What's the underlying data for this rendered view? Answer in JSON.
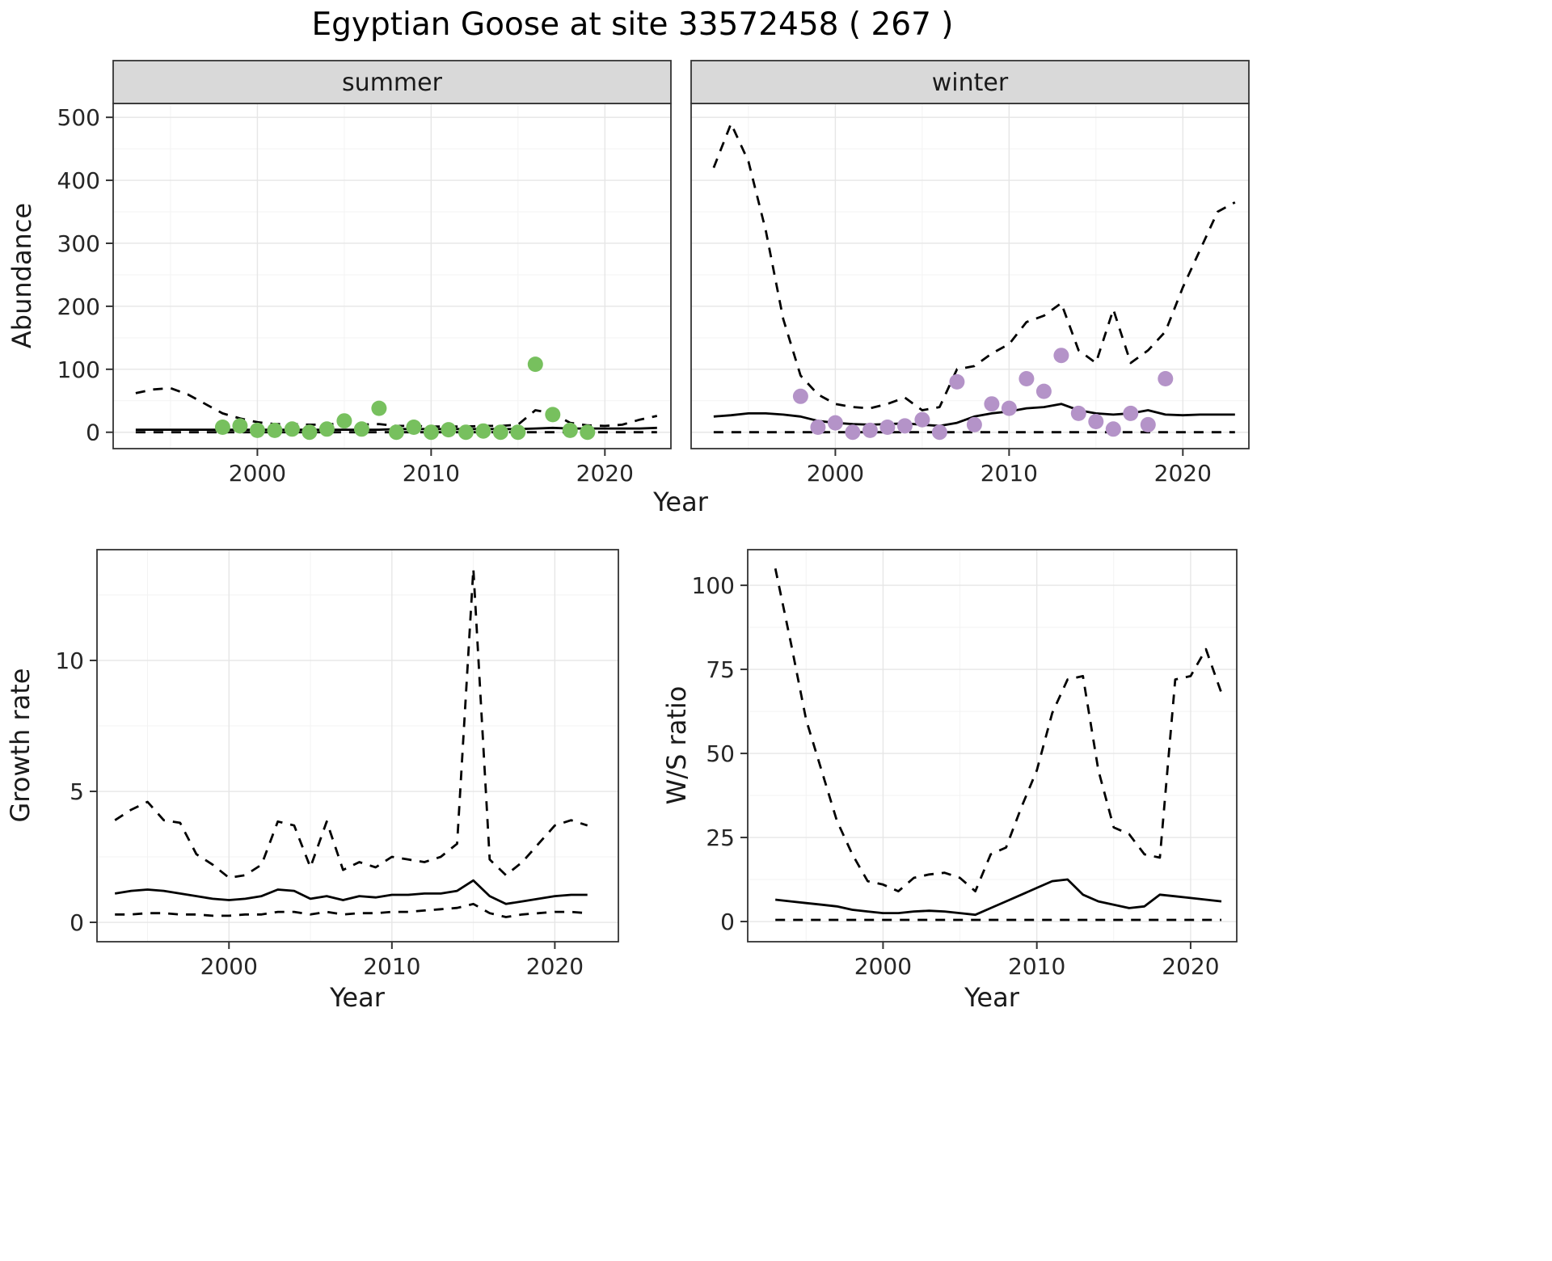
{
  "title": "Egyptian Goose at site 33572458 ( 267 )",
  "shared": {
    "x_axis_label": "Year",
    "colors": {
      "summer_points": "#77c05e",
      "winter_points": "#b493c8",
      "line": "#000000",
      "strip_bg": "#d9d9d9",
      "panel_border": "#333333",
      "grid_major": "#e6e6e6",
      "grid_minor": "#f3f3f3",
      "tick": "#333333",
      "tick_text": "#262626"
    }
  },
  "chart_data": [
    {
      "id": "abundance_summer",
      "type": "line+scatter",
      "facet_label": "summer",
      "xlabel": "Year",
      "ylabel": "Abundance",
      "xlim": [
        1991.7,
        2023.8
      ],
      "ylim": [
        -26,
        522
      ],
      "yticks": [
        0,
        100,
        200,
        300,
        400,
        500
      ],
      "yticks_minor": [
        50,
        150,
        250,
        350,
        450
      ],
      "xticks": [
        2000,
        2010,
        2020
      ],
      "xticks_minor": [
        1995,
        2005,
        2015
      ],
      "series": [
        {
          "name": "lower_ci",
          "style": "dashed",
          "x": [
            1993,
            1994,
            1995,
            1996,
            1997,
            1998,
            1999,
            2000,
            2001,
            2002,
            2003,
            2004,
            2005,
            2006,
            2007,
            2008,
            2009,
            2010,
            2011,
            2012,
            2013,
            2014,
            2015,
            2016,
            2017,
            2018,
            2019,
            2020,
            2021,
            2022,
            2023
          ],
          "y": [
            0,
            0,
            0,
            0,
            0,
            0,
            0,
            0,
            0,
            0,
            0,
            0,
            0,
            0,
            0,
            0,
            0,
            0,
            0,
            0,
            0,
            0,
            0,
            0,
            0,
            0,
            0,
            0,
            0,
            0,
            0
          ]
        },
        {
          "name": "upper_ci",
          "style": "dashed",
          "x": [
            1993,
            1994,
            1995,
            1996,
            1997,
            1998,
            1999,
            2000,
            2001,
            2002,
            2003,
            2004,
            2005,
            2006,
            2007,
            2008,
            2009,
            2010,
            2011,
            2012,
            2013,
            2014,
            2015,
            2016,
            2017,
            2018,
            2019,
            2020,
            2021,
            2022,
            2023
          ],
          "y": [
            62,
            68,
            70,
            60,
            45,
            30,
            22,
            16,
            13,
            13,
            12,
            12,
            15,
            12,
            13,
            10,
            10,
            9,
            9,
            9,
            10,
            10,
            12,
            35,
            30,
            15,
            11,
            10,
            12,
            20,
            26
          ]
        },
        {
          "name": "fit",
          "style": "solid",
          "x": [
            1993,
            1994,
            1995,
            1996,
            1997,
            1998,
            1999,
            2000,
            2001,
            2002,
            2003,
            2004,
            2005,
            2006,
            2007,
            2008,
            2009,
            2010,
            2011,
            2012,
            2013,
            2014,
            2015,
            2016,
            2017,
            2018,
            2019,
            2020,
            2021,
            2022,
            2023
          ],
          "y": [
            4,
            4,
            4,
            4,
            4,
            4,
            4,
            4,
            4,
            4,
            4,
            4,
            4,
            4,
            4,
            5,
            5,
            5,
            5,
            5,
            5,
            5,
            5,
            6,
            7,
            6,
            6,
            6,
            6,
            6,
            7
          ]
        },
        {
          "name": "observed",
          "style": "points",
          "color_key": "summer_points",
          "x": [
            1998,
            1999,
            2000,
            2001,
            2002,
            2003,
            2004,
            2005,
            2006,
            2007,
            2008,
            2009,
            2010,
            2011,
            2012,
            2013,
            2014,
            2015,
            2016,
            2017,
            2018,
            2019
          ],
          "y": [
            8,
            10,
            3,
            3,
            5,
            0,
            5,
            18,
            5,
            38,
            0,
            8,
            0,
            4,
            0,
            2,
            0,
            0,
            108,
            28,
            3,
            0
          ]
        }
      ]
    },
    {
      "id": "abundance_winter",
      "type": "line+scatter",
      "facet_label": "winter",
      "xlabel": "Year",
      "ylabel": "Abundance",
      "xlim": [
        1991.7,
        2023.8
      ],
      "ylim": [
        -26,
        522
      ],
      "yticks": [
        0,
        100,
        200,
        300,
        400,
        500
      ],
      "yticks_minor": [
        50,
        150,
        250,
        350,
        450
      ],
      "xticks": [
        2000,
        2010,
        2020
      ],
      "xticks_minor": [
        1995,
        2005,
        2015
      ],
      "series": [
        {
          "name": "lower_ci",
          "style": "dashed",
          "x": [
            1993,
            1994,
            1995,
            1996,
            1997,
            1998,
            1999,
            2000,
            2001,
            2002,
            2003,
            2004,
            2005,
            2006,
            2007,
            2008,
            2009,
            2010,
            2011,
            2012,
            2013,
            2014,
            2015,
            2016,
            2017,
            2018,
            2019,
            2020,
            2021,
            2022,
            2023
          ],
          "y": [
            0,
            0,
            0,
            0,
            0,
            0,
            0,
            0,
            0,
            0,
            0,
            0,
            0,
            0,
            0,
            0,
            0,
            0,
            0,
            0,
            0,
            0,
            0,
            0,
            0,
            0,
            0,
            0,
            0,
            0,
            0
          ]
        },
        {
          "name": "upper_ci",
          "style": "dashed",
          "x": [
            1993,
            1994,
            1995,
            1996,
            1997,
            1998,
            1999,
            2000,
            2001,
            2002,
            2003,
            2004,
            2005,
            2006,
            2007,
            2008,
            2009,
            2010,
            2011,
            2012,
            2013,
            2014,
            2015,
            2016,
            2017,
            2018,
            2019,
            2020,
            2021,
            2022,
            2023
          ],
          "y": [
            420,
            490,
            430,
            320,
            180,
            90,
            60,
            45,
            40,
            38,
            45,
            55,
            35,
            40,
            100,
            105,
            125,
            140,
            175,
            185,
            205,
            130,
            110,
            195,
            110,
            130,
            160,
            230,
            290,
            350,
            365
          ]
        },
        {
          "name": "fit",
          "style": "solid",
          "x": [
            1993,
            1994,
            1995,
            1996,
            1997,
            1998,
            1999,
            2000,
            2001,
            2002,
            2003,
            2004,
            2005,
            2006,
            2007,
            2008,
            2009,
            2010,
            2011,
            2012,
            2013,
            2014,
            2015,
            2016,
            2017,
            2018,
            2019,
            2020,
            2021,
            2022,
            2023
          ],
          "y": [
            25,
            27,
            30,
            30,
            28,
            25,
            18,
            15,
            13,
            12,
            13,
            14,
            12,
            10,
            15,
            25,
            30,
            33,
            38,
            40,
            45,
            35,
            30,
            28,
            30,
            35,
            28,
            27,
            28,
            28,
            28
          ]
        },
        {
          "name": "observed",
          "style": "points",
          "color_key": "winter_points",
          "x": [
            1998,
            1999,
            2000,
            2001,
            2002,
            2003,
            2004,
            2005,
            2006,
            2007,
            2008,
            2009,
            2010,
            2011,
            2012,
            2013,
            2014,
            2015,
            2016,
            2017,
            2018,
            2019
          ],
          "y": [
            57,
            8,
            15,
            0,
            3,
            8,
            10,
            20,
            0,
            80,
            12,
            45,
            38,
            85,
            65,
            122,
            30,
            17,
            5,
            30,
            12,
            85
          ]
        }
      ]
    },
    {
      "id": "growth_rate",
      "type": "line",
      "facet_label": "",
      "xlabel": "Year",
      "ylabel": "Growth rate",
      "xlim": [
        1991.9,
        2023.9
      ],
      "ylim": [
        -0.74,
        14.23
      ],
      "yticks": [
        0,
        5,
        10
      ],
      "yticks_minor": [
        2.5,
        7.5,
        12.5
      ],
      "xticks": [
        2000,
        2010,
        2020
      ],
      "xticks_minor": [
        1995,
        2005,
        2015
      ],
      "series": [
        {
          "name": "lower_ci",
          "style": "dashed",
          "x": [
            1993,
            1994,
            1995,
            1996,
            1997,
            1998,
            1999,
            2000,
            2001,
            2002,
            2003,
            2004,
            2005,
            2006,
            2007,
            2008,
            2009,
            2010,
            2011,
            2012,
            2013,
            2014,
            2015,
            2016,
            2017,
            2018,
            2019,
            2020,
            2021,
            2022
          ],
          "y": [
            0.3,
            0.3,
            0.35,
            0.35,
            0.3,
            0.3,
            0.25,
            0.25,
            0.3,
            0.3,
            0.4,
            0.4,
            0.3,
            0.4,
            0.3,
            0.35,
            0.35,
            0.4,
            0.4,
            0.45,
            0.5,
            0.55,
            0.7,
            0.35,
            0.2,
            0.3,
            0.35,
            0.4,
            0.4,
            0.35
          ]
        },
        {
          "name": "upper_ci",
          "style": "dashed",
          "x": [
            1993,
            1994,
            1995,
            1996,
            1997,
            1998,
            1999,
            2000,
            2001,
            2002,
            2003,
            2004,
            2005,
            2006,
            2007,
            2008,
            2009,
            2010,
            2011,
            2012,
            2013,
            2014,
            2015,
            2016,
            2017,
            2018,
            2019,
            2020,
            2021,
            2022
          ],
          "y": [
            3.9,
            4.3,
            4.6,
            3.9,
            3.8,
            2.6,
            2.2,
            1.7,
            1.8,
            2.2,
            3.85,
            3.7,
            2.1,
            3.85,
            2.0,
            2.3,
            2.1,
            2.5,
            2.4,
            2.3,
            2.5,
            3.0,
            13.5,
            2.4,
            1.8,
            2.3,
            3.0,
            3.7,
            3.9,
            3.7
          ]
        },
        {
          "name": "fit",
          "style": "solid",
          "x": [
            1993,
            1994,
            1995,
            1996,
            1997,
            1998,
            1999,
            2000,
            2001,
            2002,
            2003,
            2004,
            2005,
            2006,
            2007,
            2008,
            2009,
            2010,
            2011,
            2012,
            2013,
            2014,
            2015,
            2016,
            2017,
            2018,
            2019,
            2020,
            2021,
            2022
          ],
          "y": [
            1.1,
            1.2,
            1.25,
            1.2,
            1.1,
            1.0,
            0.9,
            0.85,
            0.9,
            1.0,
            1.25,
            1.2,
            0.9,
            1.0,
            0.85,
            1.0,
            0.95,
            1.05,
            1.05,
            1.1,
            1.1,
            1.2,
            1.6,
            1.0,
            0.7,
            0.8,
            0.9,
            1.0,
            1.05,
            1.05
          ]
        }
      ]
    },
    {
      "id": "ws_ratio",
      "type": "line",
      "facet_label": "",
      "xlabel": "Year",
      "ylabel": "W/S ratio",
      "xlim": [
        1991.2,
        2023.0
      ],
      "ylim": [
        -6,
        110.6
      ],
      "yticks": [
        0,
        25,
        50,
        75,
        100
      ],
      "yticks_minor": [
        12.5,
        37.5,
        62.5,
        87.5
      ],
      "xticks": [
        2000,
        2010,
        2020
      ],
      "xticks_minor": [
        1995,
        2005,
        2015
      ],
      "series": [
        {
          "name": "lower_ci",
          "style": "dashed",
          "x": [
            1993,
            1994,
            1995,
            1996,
            1997,
            1998,
            1999,
            2000,
            2001,
            2002,
            2003,
            2004,
            2005,
            2006,
            2007,
            2008,
            2009,
            2010,
            2011,
            2012,
            2013,
            2014,
            2015,
            2016,
            2017,
            2018,
            2019,
            2020,
            2021,
            2022
          ],
          "y": [
            0.5,
            0.5,
            0.5,
            0.5,
            0.5,
            0.5,
            0.5,
            0.5,
            0.5,
            0.5,
            0.5,
            0.5,
            0.5,
            0.5,
            0.5,
            0.5,
            0.5,
            0.5,
            0.5,
            0.5,
            0.5,
            0.5,
            0.5,
            0.5,
            0.5,
            0.5,
            0.5,
            0.5,
            0.5,
            0.5
          ]
        },
        {
          "name": "upper_ci",
          "style": "dashed",
          "x": [
            1993,
            1994,
            1995,
            1996,
            1997,
            1998,
            1999,
            2000,
            2001,
            2002,
            2003,
            2004,
            2005,
            2006,
            2007,
            2008,
            2009,
            2010,
            2011,
            2012,
            2013,
            2014,
            2015,
            2016,
            2017,
            2018,
            2019,
            2020,
            2021,
            2022
          ],
          "y": [
            105,
            83,
            60,
            45,
            30,
            20,
            12,
            11,
            9,
            13,
            14,
            14.5,
            13,
            9,
            20,
            22,
            34,
            45,
            62,
            72,
            73,
            45,
            28,
            26,
            20,
            19,
            72,
            73,
            81,
            68
          ]
        },
        {
          "name": "fit",
          "style": "solid",
          "x": [
            1993,
            1994,
            1995,
            1996,
            1997,
            1998,
            1999,
            2000,
            2001,
            2002,
            2003,
            2004,
            2005,
            2006,
            2007,
            2008,
            2009,
            2010,
            2011,
            2012,
            2013,
            2014,
            2015,
            2016,
            2017,
            2018,
            2019,
            2020,
            2021,
            2022
          ],
          "y": [
            6.5,
            6,
            5.5,
            5,
            4.5,
            3.5,
            3,
            2.5,
            2.5,
            3,
            3.2,
            3,
            2.5,
            2,
            4,
            6,
            8,
            10,
            12,
            12.5,
            8,
            6,
            5,
            4,
            4.5,
            8,
            7.5,
            7,
            6.5,
            6
          ]
        }
      ]
    }
  ]
}
